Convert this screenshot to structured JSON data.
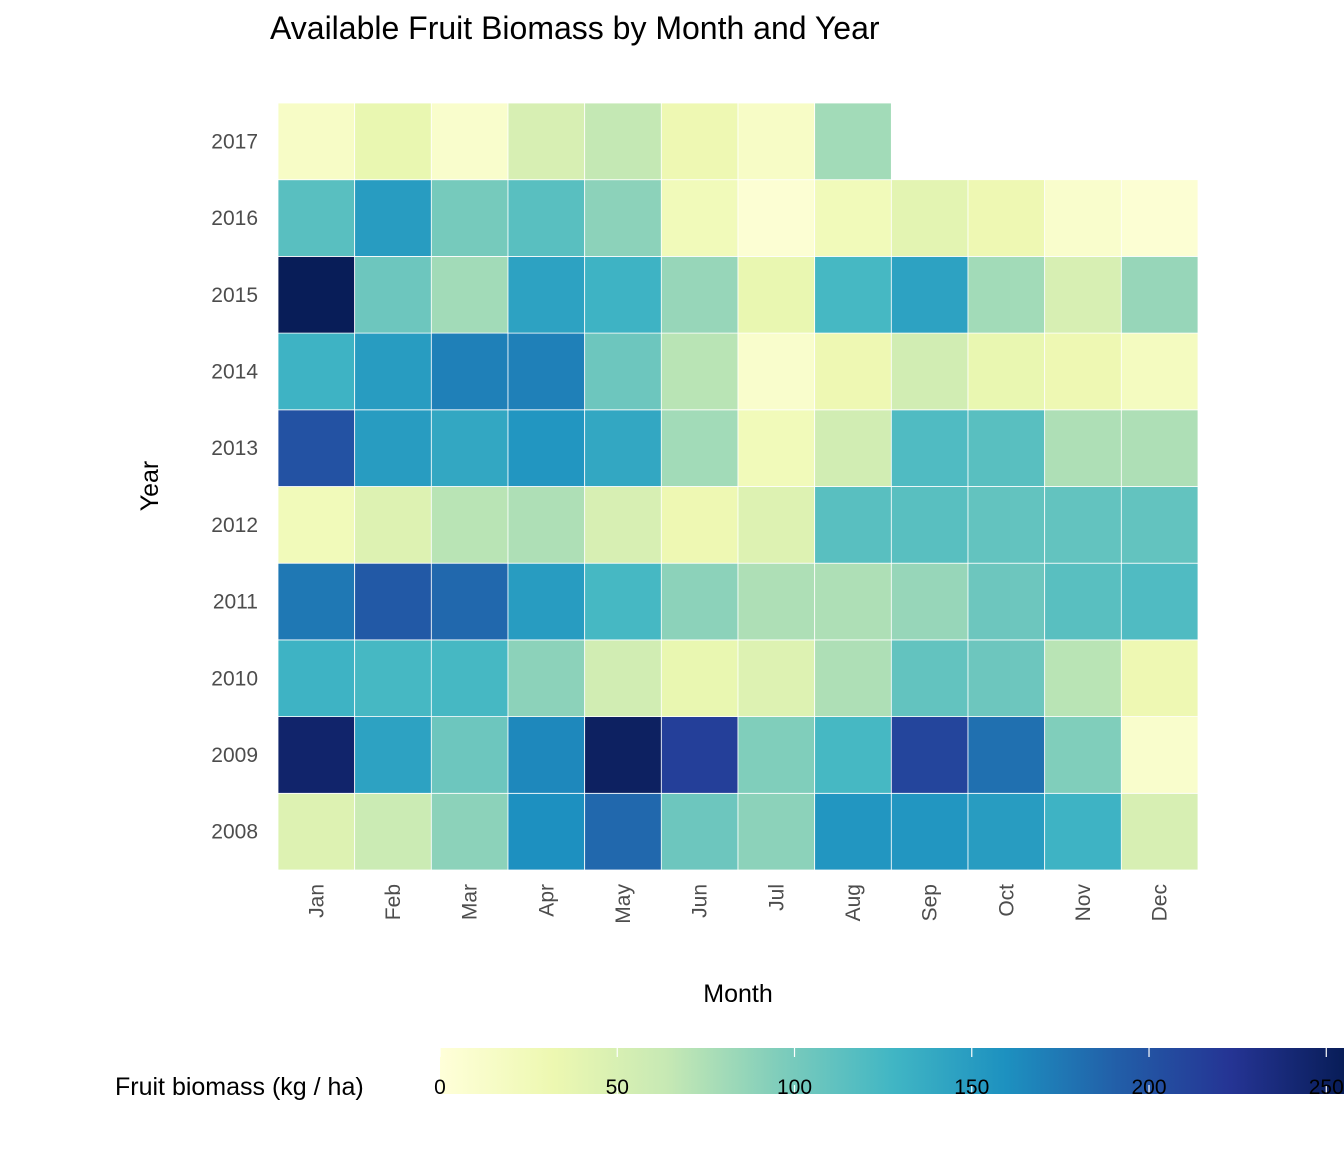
{
  "chart_data": {
    "type": "heatmap",
    "title": "Available Fruit Biomass by Month and Year",
    "xlabel": "Month",
    "ylabel": "Year",
    "months": [
      "Jan",
      "Feb",
      "Mar",
      "Apr",
      "May",
      "Jun",
      "Jul",
      "Aug",
      "Sep",
      "Oct",
      "Nov",
      "Dec"
    ],
    "years": [
      "2008",
      "2009",
      "2010",
      "2011",
      "2012",
      "2013",
      "2014",
      "2015",
      "2016",
      "2017"
    ],
    "values": [
      [
        45,
        60,
        90,
        160,
        185,
        105,
        90,
        155,
        155,
        150,
        130,
        50
      ],
      [
        245,
        145,
        105,
        165,
        250,
        215,
        95,
        125,
        210,
        180,
        95,
        10
      ],
      [
        130,
        125,
        125,
        90,
        55,
        35,
        45,
        75,
        110,
        105,
        70,
        30
      ],
      [
        175,
        195,
        185,
        150,
        125,
        90,
        75,
        75,
        85,
        105,
        115,
        120
      ],
      [
        25,
        45,
        70,
        75,
        50,
        30,
        45,
        115,
        115,
        110,
        110,
        110
      ],
      [
        200,
        150,
        140,
        155,
        140,
        80,
        25,
        55,
        120,
        115,
        75,
        75
      ],
      [
        130,
        150,
        170,
        170,
        105,
        70,
        10,
        30,
        55,
        35,
        30,
        20
      ],
      [
        255,
        105,
        80,
        145,
        130,
        85,
        35,
        125,
        145,
        80,
        50,
        85
      ],
      [
        115,
        150,
        100,
        115,
        90,
        25,
        5,
        25,
        40,
        30,
        10,
        5
      ],
      [
        15,
        35,
        10,
        50,
        65,
        30,
        15,
        80,
        null,
        null,
        null,
        null
      ]
    ],
    "legend": {
      "title": "Fruit biomass (kg / ha)",
      "ticks": [
        0,
        50,
        100,
        150,
        200,
        250
      ],
      "range": [
        0,
        255
      ],
      "position": "bottom"
    },
    "color_scale": [
      "#ffffd9",
      "#edf8b1",
      "#c7e9b4",
      "#7fcdbb",
      "#41b6c4",
      "#1d91c0",
      "#225ea8",
      "#253494",
      "#081d58"
    ]
  }
}
